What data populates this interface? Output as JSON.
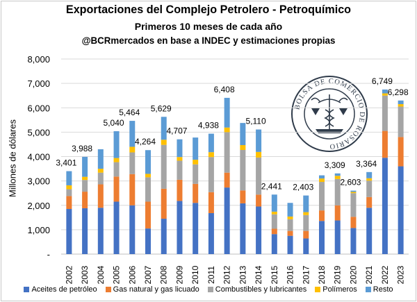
{
  "titles": {
    "line1": "Exportaciones del Complejo Petrolero - Petroquímico",
    "line2": "Primeros  10 meses de cada año",
    "line3": "@BCRmercados en base a INDEC y estimaciones propias"
  },
  "watermark": {
    "text": "BOLSA DE COMERCIO DE ROSARIO"
  },
  "chart_data": {
    "type": "bar",
    "stacked": true,
    "ylabel": "Millones de dólares",
    "ylim": [
      0,
      8000
    ],
    "yticks": [
      0,
      1000,
      2000,
      3000,
      4000,
      5000,
      6000,
      7000,
      8000
    ],
    "ytick_labels": [
      "-",
      "1,000",
      "2,000",
      "3,000",
      "4,000",
      "5,000",
      "6,000",
      "7,000",
      "8,000"
    ],
    "grid": true,
    "legend_position": "bottom",
    "categories": [
      "2002",
      "2003",
      "2004",
      "2005",
      "2006",
      "2007",
      "2008",
      "2009",
      "2010",
      "2011",
      "2012",
      "2013",
      "2014",
      "2015",
      "2016",
      "2017",
      "2018",
      "2019",
      "2020",
      "2021",
      "2022",
      "2023"
    ],
    "series": [
      {
        "name": "Aceites de petróleo",
        "color": "#4472C4",
        "values": [
          1850,
          1880,
          1900,
          2150,
          2000,
          1050,
          1450,
          2180,
          2100,
          1680,
          2730,
          2080,
          1950,
          820,
          750,
          640,
          1360,
          1380,
          1070,
          1900,
          3950,
          3600
        ]
      },
      {
        "name": "Gas natural y gas licuado",
        "color": "#ED7D31",
        "values": [
          530,
          680,
          960,
          1030,
          1280,
          1100,
          1230,
          870,
          780,
          860,
          610,
          530,
          490,
          220,
          200,
          310,
          430,
          620,
          460,
          440,
          1100,
          1200
        ]
      },
      {
        "name": "Combustibles y lubricantes",
        "color": "#A5A5A5",
        "values": [
          280,
          480,
          480,
          590,
          890,
          1000,
          1800,
          780,
          800,
          1440,
          1660,
          1660,
          1520,
          590,
          480,
          650,
          1170,
          1080,
          970,
          670,
          1450,
          1250
        ]
      },
      {
        "name": "Polímeros",
        "color": "#FFC000",
        "values": [
          160,
          130,
          160,
          170,
          230,
          140,
          210,
          150,
          190,
          200,
          190,
          200,
          230,
          110,
          110,
          120,
          140,
          130,
          50,
          100,
          90,
          100
        ]
      },
      {
        "name": "Resto",
        "color": "#5B9BD5",
        "values": [
          581,
          818,
          800,
          1100,
          1064,
          974,
          939,
          727,
          910,
          758,
          1218,
          907,
          920,
          701,
          560,
          683,
          130,
          99,
          53,
          254,
          159,
          148
        ]
      }
    ],
    "totals_labels": [
      {
        "year": "2002",
        "text": "3,401"
      },
      {
        "year": "2003",
        "text": "3,988"
      },
      {
        "year": "2005",
        "text": "5,040"
      },
      {
        "year": "2006",
        "text": "5,464"
      },
      {
        "year": "2007",
        "text": "4,264"
      },
      {
        "year": "2008",
        "text": "5,629"
      },
      {
        "year": "2009",
        "text": "4,707"
      },
      {
        "year": "2011",
        "text": "4,938"
      },
      {
        "year": "2012",
        "text": "6,408"
      },
      {
        "year": "2014",
        "text": "5,110"
      },
      {
        "year": "2015",
        "text": "2,441"
      },
      {
        "year": "2017",
        "text": "2,403"
      },
      {
        "year": "2019",
        "text": "3,309"
      },
      {
        "year": "2020",
        "text": "2,603"
      },
      {
        "year": "2021",
        "text": "3,364"
      },
      {
        "year": "2022",
        "text": "6,749"
      },
      {
        "year": "2023",
        "text": "6,298"
      }
    ]
  }
}
